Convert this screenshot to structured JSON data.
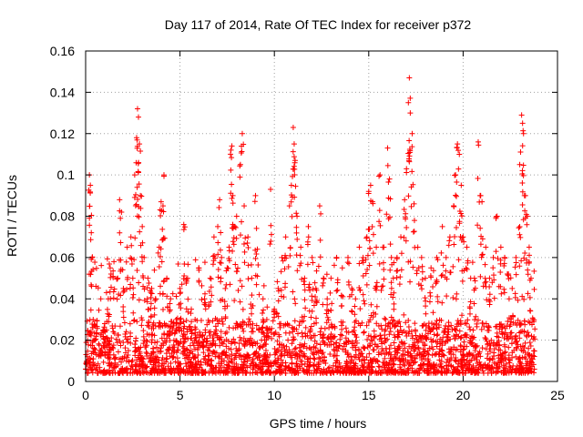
{
  "chart_data": {
    "type": "scatter",
    "title": "Day 117 of 2014, Rate Of TEC Index for receiver p372",
    "xlabel": "GPS time / hours",
    "ylabel": "ROTI / TECUs",
    "xlim": [
      0,
      25
    ],
    "ylim": [
      0,
      0.16
    ],
    "xticks": [
      0,
      5,
      10,
      15,
      20,
      25
    ],
    "yticks": [
      0,
      0.02,
      0.04,
      0.06,
      0.08,
      0.1,
      0.12,
      0.14,
      0.16
    ],
    "xtick_labels": [
      "0",
      "5",
      "10",
      "15",
      "20",
      "25"
    ],
    "ytick_labels": [
      "0",
      "0.02",
      "0.04",
      "0.06",
      "0.08",
      "0.1",
      "0.12",
      "0.14",
      "0.16"
    ],
    "grid": true,
    "marker": "+",
    "color": "#ff0000",
    "series": [
      {
        "name": "",
        "points": [
          [
            0.1,
            0.012
          ],
          [
            0.2,
            0.1
          ],
          [
            0.25,
            0.095
          ],
          [
            0.3,
            0.072
          ],
          [
            0.35,
            0.06
          ],
          [
            0.4,
            0.03
          ],
          [
            0.5,
            0.02
          ],
          [
            0.8,
            0.015
          ],
          [
            1.0,
            0.025
          ],
          [
            1.2,
            0.04
          ],
          [
            1.3,
            0.055
          ],
          [
            1.5,
            0.058
          ],
          [
            1.7,
            0.05
          ],
          [
            1.8,
            0.088
          ],
          [
            1.9,
            0.082
          ],
          [
            2.0,
            0.045
          ],
          [
            2.2,
            0.065
          ],
          [
            2.4,
            0.07
          ],
          [
            2.5,
            0.05
          ],
          [
            2.6,
            0.1
          ],
          [
            2.7,
            0.118
          ],
          [
            2.75,
            0.132
          ],
          [
            2.8,
            0.128
          ],
          [
            2.85,
            0.115
          ],
          [
            2.9,
            0.09
          ],
          [
            3.0,
            0.075
          ],
          [
            3.1,
            0.06
          ],
          [
            3.3,
            0.05
          ],
          [
            3.5,
            0.045
          ],
          [
            3.7,
            0.04
          ],
          [
            3.9,
            0.065
          ],
          [
            4.0,
            0.087
          ],
          [
            4.1,
            0.085
          ],
          [
            4.15,
            0.1
          ],
          [
            4.3,
            0.05
          ],
          [
            4.5,
            0.04
          ],
          [
            4.8,
            0.03
          ],
          [
            5.0,
            0.045
          ],
          [
            5.2,
            0.076
          ],
          [
            5.4,
            0.05
          ],
          [
            5.6,
            0.035
          ],
          [
            5.8,
            0.03
          ],
          [
            6.0,
            0.055
          ],
          [
            6.3,
            0.04
          ],
          [
            6.6,
            0.05
          ],
          [
            6.8,
            0.07
          ],
          [
            7.0,
            0.075
          ],
          [
            7.1,
            0.088
          ],
          [
            7.2,
            0.06
          ],
          [
            7.4,
            0.045
          ],
          [
            7.5,
            0.055
          ],
          [
            7.6,
            0.065
          ],
          [
            7.7,
            0.112
          ],
          [
            7.75,
            0.114
          ],
          [
            7.8,
            0.09
          ],
          [
            7.9,
            0.075
          ],
          [
            8.0,
            0.08
          ],
          [
            8.2,
            0.105
          ],
          [
            8.3,
            0.12
          ],
          [
            8.4,
            0.085
          ],
          [
            8.6,
            0.07
          ],
          [
            8.8,
            0.05
          ],
          [
            9.0,
            0.09
          ],
          [
            9.1,
            0.064
          ],
          [
            9.4,
            0.04
          ],
          [
            9.6,
            0.03
          ],
          [
            9.8,
            0.093
          ],
          [
            10.0,
            0.035
          ],
          [
            10.2,
            0.045
          ],
          [
            10.4,
            0.06
          ],
          [
            10.6,
            0.07
          ],
          [
            10.8,
            0.085
          ],
          [
            10.9,
            0.095
          ],
          [
            11.0,
            0.123
          ],
          [
            11.05,
            0.115
          ],
          [
            11.1,
            0.107
          ],
          [
            11.2,
            0.08
          ],
          [
            11.4,
            0.065
          ],
          [
            11.6,
            0.05
          ],
          [
            11.8,
            0.075
          ],
          [
            12.0,
            0.06
          ],
          [
            12.2,
            0.045
          ],
          [
            12.4,
            0.085
          ],
          [
            12.6,
            0.05
          ],
          [
            12.8,
            0.04
          ],
          [
            13.0,
            0.05
          ],
          [
            13.3,
            0.06
          ],
          [
            13.6,
            0.055
          ],
          [
            13.9,
            0.06
          ],
          [
            14.1,
            0.045
          ],
          [
            14.3,
            0.04
          ],
          [
            14.5,
            0.065
          ],
          [
            14.7,
            0.06
          ],
          [
            14.9,
            0.07
          ],
          [
            15.0,
            0.092
          ],
          [
            15.1,
            0.095
          ],
          [
            15.2,
            0.087
          ],
          [
            15.4,
            0.065
          ],
          [
            15.6,
            0.1
          ],
          [
            15.8,
            0.065
          ],
          [
            16.0,
            0.113
          ],
          [
            16.1,
            0.098
          ],
          [
            16.2,
            0.06
          ],
          [
            16.3,
            0.05
          ],
          [
            16.5,
            0.06
          ],
          [
            16.7,
            0.07
          ],
          [
            16.9,
            0.088
          ],
          [
            17.0,
            0.103
          ],
          [
            17.1,
            0.135
          ],
          [
            17.15,
            0.147
          ],
          [
            17.2,
            0.13
          ],
          [
            17.3,
            0.12
          ],
          [
            17.4,
            0.086
          ],
          [
            17.6,
            0.065
          ],
          [
            17.8,
            0.06
          ],
          [
            18.0,
            0.05
          ],
          [
            18.3,
            0.055
          ],
          [
            18.6,
            0.06
          ],
          [
            18.9,
            0.075
          ],
          [
            19.1,
            0.06
          ],
          [
            19.3,
            0.07
          ],
          [
            19.5,
            0.085
          ],
          [
            19.6,
            0.1
          ],
          [
            19.7,
            0.115
          ],
          [
            19.8,
            0.11
          ],
          [
            19.9,
            0.095
          ],
          [
            20.0,
            0.07
          ],
          [
            20.2,
            0.065
          ],
          [
            20.4,
            0.05
          ],
          [
            20.6,
            0.05
          ],
          [
            20.8,
            0.116
          ],
          [
            20.9,
            0.09
          ],
          [
            21.0,
            0.087
          ],
          [
            21.2,
            0.065
          ],
          [
            21.4,
            0.05
          ],
          [
            21.6,
            0.06
          ],
          [
            21.8,
            0.08
          ],
          [
            22.0,
            0.065
          ],
          [
            22.2,
            0.06
          ],
          [
            22.4,
            0.052
          ],
          [
            22.6,
            0.045
          ],
          [
            22.8,
            0.06
          ],
          [
            23.0,
            0.105
          ],
          [
            23.1,
            0.129
          ],
          [
            23.15,
            0.125
          ],
          [
            23.2,
            0.12
          ],
          [
            23.3,
            0.09
          ],
          [
            23.4,
            0.08
          ],
          [
            23.5,
            0.065
          ],
          [
            23.6,
            0.05
          ],
          [
            23.7,
            0.03
          ]
        ]
      }
    ],
    "dense_band": {
      "x_range": [
        0,
        23.8
      ],
      "y_floor": 0.004,
      "y_typical_max": 0.03,
      "y_burst_max": 0.06
    }
  }
}
